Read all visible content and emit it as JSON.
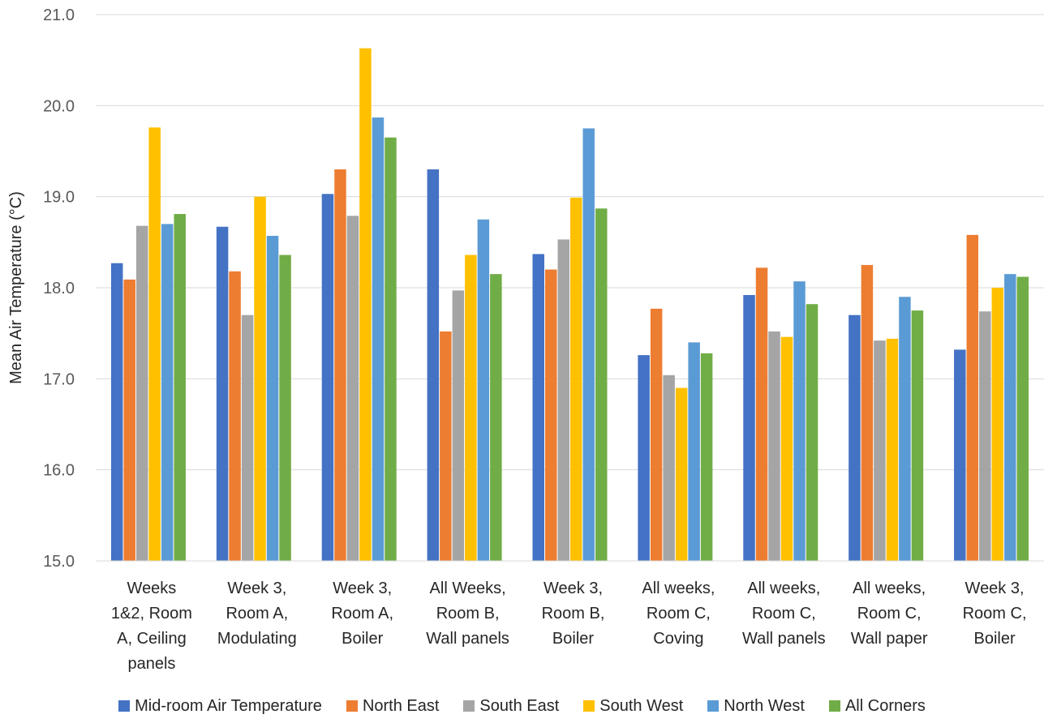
{
  "chart_data": {
    "type": "bar",
    "title": "",
    "xlabel": "",
    "ylabel": "Mean Air Temperature (°C)",
    "ylim": [
      15.0,
      21.0
    ],
    "yticks": [
      "15.0",
      "16.0",
      "17.0",
      "18.0",
      "19.0",
      "20.0",
      "21.0"
    ],
    "grid": true,
    "legend_position": "bottom",
    "categories": [
      [
        "Weeks",
        "1&2, Room",
        "A, Ceiling",
        "panels"
      ],
      [
        "Week 3,",
        "Room A,",
        "Modulating"
      ],
      [
        "Week 3,",
        "Room A,",
        "Boiler"
      ],
      [
        "All Weeks,",
        "Room B,",
        "Wall panels"
      ],
      [
        "Week 3,",
        "Room B,",
        "Boiler"
      ],
      [
        "All weeks,",
        "Room C,",
        "Coving"
      ],
      [
        "All weeks,",
        "Room C,",
        "Wall panels"
      ],
      [
        "All weeks,",
        "Room C,",
        "Wall paper"
      ],
      [
        "Week 3,",
        "Room C,",
        "Boiler"
      ]
    ],
    "series": [
      {
        "name": "Mid-room Air Temperature",
        "color": "#4472C4",
        "values": [
          18.27,
          18.67,
          19.03,
          19.3,
          18.37,
          17.26,
          17.92,
          17.7,
          17.32
        ]
      },
      {
        "name": "North East",
        "color": "#ED7D31",
        "values": [
          18.09,
          18.18,
          19.3,
          17.52,
          18.2,
          17.77,
          18.22,
          18.25,
          18.58
        ]
      },
      {
        "name": "South East",
        "color": "#A5A5A5",
        "values": [
          18.68,
          17.7,
          18.79,
          17.97,
          18.53,
          17.04,
          17.52,
          17.42,
          17.74
        ]
      },
      {
        "name": "South West",
        "color": "#FFC000",
        "values": [
          19.76,
          19.0,
          20.63,
          18.36,
          18.99,
          16.9,
          17.46,
          17.44,
          18.0
        ]
      },
      {
        "name": "North West",
        "color": "#5B9BD5",
        "values": [
          18.7,
          18.57,
          19.87,
          18.75,
          19.75,
          17.4,
          18.07,
          17.9,
          18.15
        ]
      },
      {
        "name": "All Corners",
        "color": "#70AD47",
        "values": [
          18.81,
          18.36,
          19.65,
          18.15,
          18.87,
          17.28,
          17.82,
          17.75,
          18.12
        ]
      }
    ]
  }
}
